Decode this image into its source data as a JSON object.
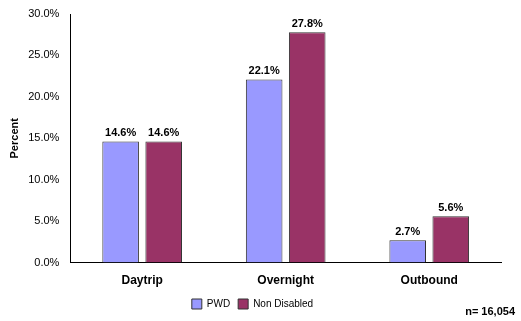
{
  "chart_data": {
    "type": "bar",
    "categories": [
      "Daytrip",
      "Overnight",
      "Outbound"
    ],
    "series": [
      {
        "name": "PWD",
        "color": "#9999ff",
        "values": [
          14.6,
          22.1,
          2.7
        ],
        "value_labels": [
          "14.6%",
          "22.1%",
          "2.7%"
        ]
      },
      {
        "name": "Non Disabled",
        "color": "#993366",
        "values": [
          14.6,
          27.8,
          5.6
        ],
        "value_labels": [
          "14.6%",
          "27.8%",
          "5.6%"
        ]
      }
    ],
    "y_label": "Percent",
    "ylim": [
      0,
      30
    ],
    "yticks": [
      {
        "value": 0,
        "label": "0.0%"
      },
      {
        "value": 5,
        "label": "5.0%"
      },
      {
        "value": 10,
        "label": "10.0%"
      },
      {
        "value": 15,
        "label": "15.0%"
      },
      {
        "value": 20,
        "label": "20.0%"
      },
      {
        "value": 25,
        "label": "25.0%"
      },
      {
        "value": 30,
        "label": "30.0%"
      }
    ],
    "grid": false,
    "legend": "bottom",
    "data_labels": true,
    "annotations": [
      "n= 16,054"
    ]
  }
}
